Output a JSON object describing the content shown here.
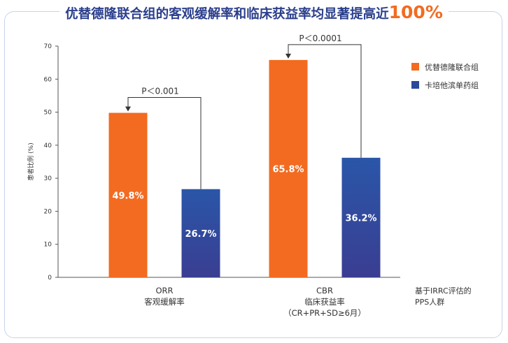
{
  "title": {
    "main": "优替德隆联合组的客观缓解率和临床获益率均显著提高近",
    "highlight": "100%"
  },
  "chart_data": {
    "type": "bar",
    "title": "优替德隆联合组的客观缓解率和临床获益率均显著提高近100%",
    "ylabel": "患者比例 (%)",
    "xlabel": "",
    "ylim": [
      0,
      70
    ],
    "yticks": [
      0,
      10,
      20,
      30,
      40,
      50,
      60,
      70
    ],
    "categories": [
      {
        "label_en": "ORR",
        "label_cn": "客观缓解率",
        "label_extra": ""
      },
      {
        "label_en": "CBR",
        "label_cn": "临床获益率",
        "label_extra": "（CR+PR+SD≥6月）"
      }
    ],
    "series": [
      {
        "name": "优替德隆联合组",
        "color": "#f26b21",
        "values": [
          49.8,
          65.8
        ],
        "labels": [
          "49.8%",
          "65.8%"
        ]
      },
      {
        "name": "卡培他滨单药组",
        "color": "#2b4a9b",
        "values": [
          26.7,
          36.2
        ],
        "labels": [
          "26.7%",
          "36.2%"
        ]
      }
    ],
    "annotations": [
      {
        "category": 0,
        "text": "P＜0.001"
      },
      {
        "category": 1,
        "text": "P＜0.0001"
      }
    ],
    "footnote": [
      "基于IRRC评估的",
      "PPS人群"
    ],
    "legend_position": "top-right",
    "grid": false
  }
}
